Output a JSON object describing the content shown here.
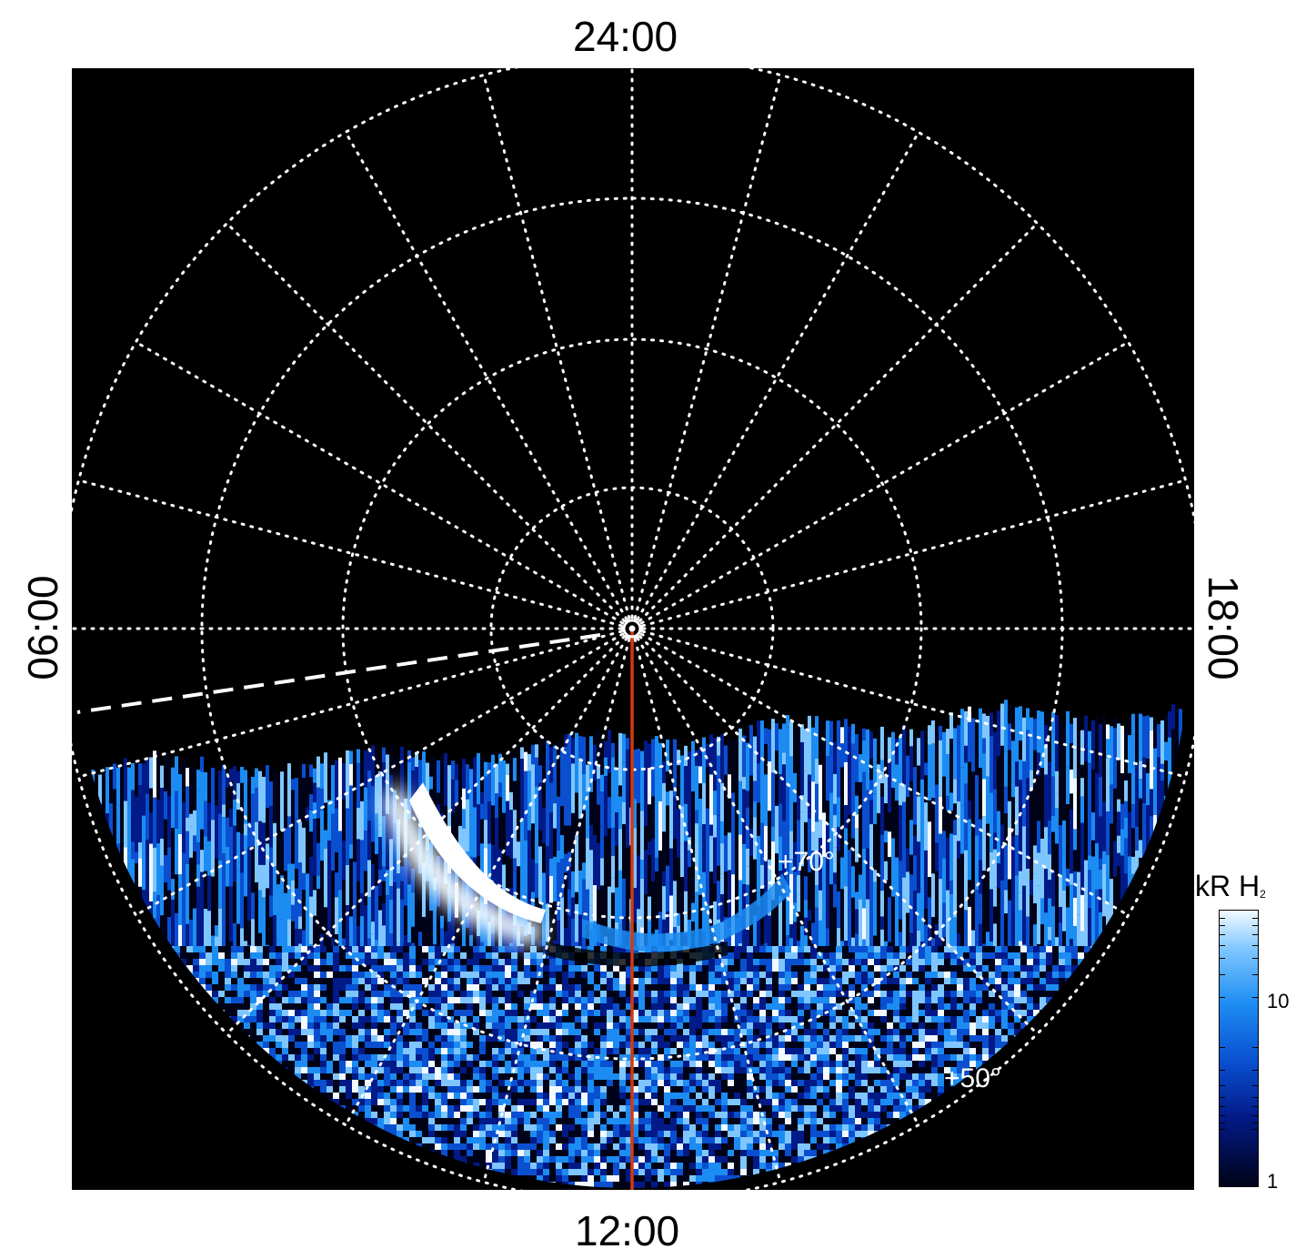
{
  "local_time_labels": {
    "top": "24:00",
    "bottom": "12:00",
    "left": "06:00",
    "right": "18:00"
  },
  "latitude_labels": {
    "inner": "+70°",
    "outer": "+50°"
  },
  "colorbar": {
    "title": "kR H",
    "title_subscript": "2",
    "ticks": [
      "10",
      "1"
    ],
    "colors": [
      "#000318",
      "#021a87",
      "#0a4fd0",
      "#1c8cf2",
      "#7fc6ff",
      "#f2faff"
    ]
  },
  "colors": {
    "background": "#000000",
    "grid": "#ffffff",
    "noon_meridian": "#d23a12",
    "dashed_line": "#ffffff"
  }
}
